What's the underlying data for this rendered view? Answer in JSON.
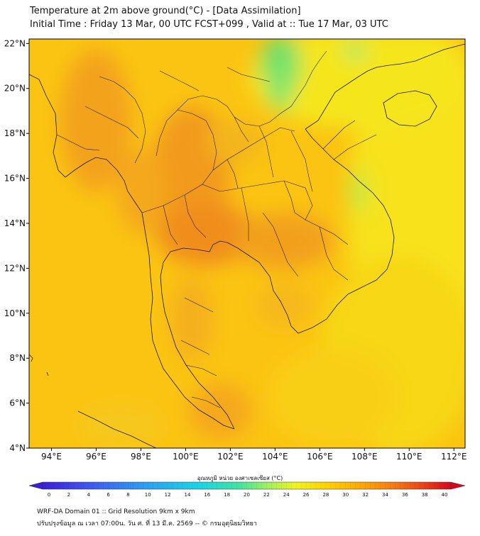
{
  "header": {
    "title_line1": "Temperature at 2m above ground(°C) - [Data Assimilation]",
    "title_line2": "Initial Time : Friday 13 Mar, 00 UTC FCST+099 , Valid at :: Tue 17 Mar, 03 UTC"
  },
  "map": {
    "lat_labels": [
      "22°N",
      "20°N",
      "18°N",
      "16°N",
      "14°N",
      "12°N",
      "10°N",
      "8°N",
      "6°N",
      "4°N"
    ],
    "lat_values": [
      22,
      20,
      18,
      16,
      14,
      12,
      10,
      8,
      6,
      4
    ],
    "lon_labels": [
      "94°E",
      "96°E",
      "98°E",
      "100°E",
      "102°E",
      "104°E",
      "106°E",
      "108°E",
      "110°E",
      "112°E"
    ],
    "lon_values": [
      94,
      96,
      98,
      100,
      102,
      104,
      106,
      108,
      110,
      112
    ],
    "extent": {
      "lon_min": 93,
      "lon_max": 112.5,
      "lat_min": 4,
      "lat_max": 22.2
    }
  },
  "colorbar": {
    "title": "อุณหภูมิ หน่วย องศาเซลเซียส (°C)",
    "ticks": [
      "0",
      "2",
      "4",
      "6",
      "8",
      "10",
      "12",
      "14",
      "16",
      "18",
      "20",
      "22",
      "24",
      "26",
      "28",
      "30",
      "32",
      "34",
      "36",
      "38",
      "40"
    ],
    "min": 0,
    "max": 40
  },
  "footer": {
    "line1": "WRF-DA Domain 01 :: Grid Resolution 9km x 9km",
    "line2": "ปรับปรุงข้อมูล ณ เวลา 07:00น. วัน ศ. ที่ 13 มี.ค. 2569 -- © กรมอุตุนิยมวิทยา"
  }
}
